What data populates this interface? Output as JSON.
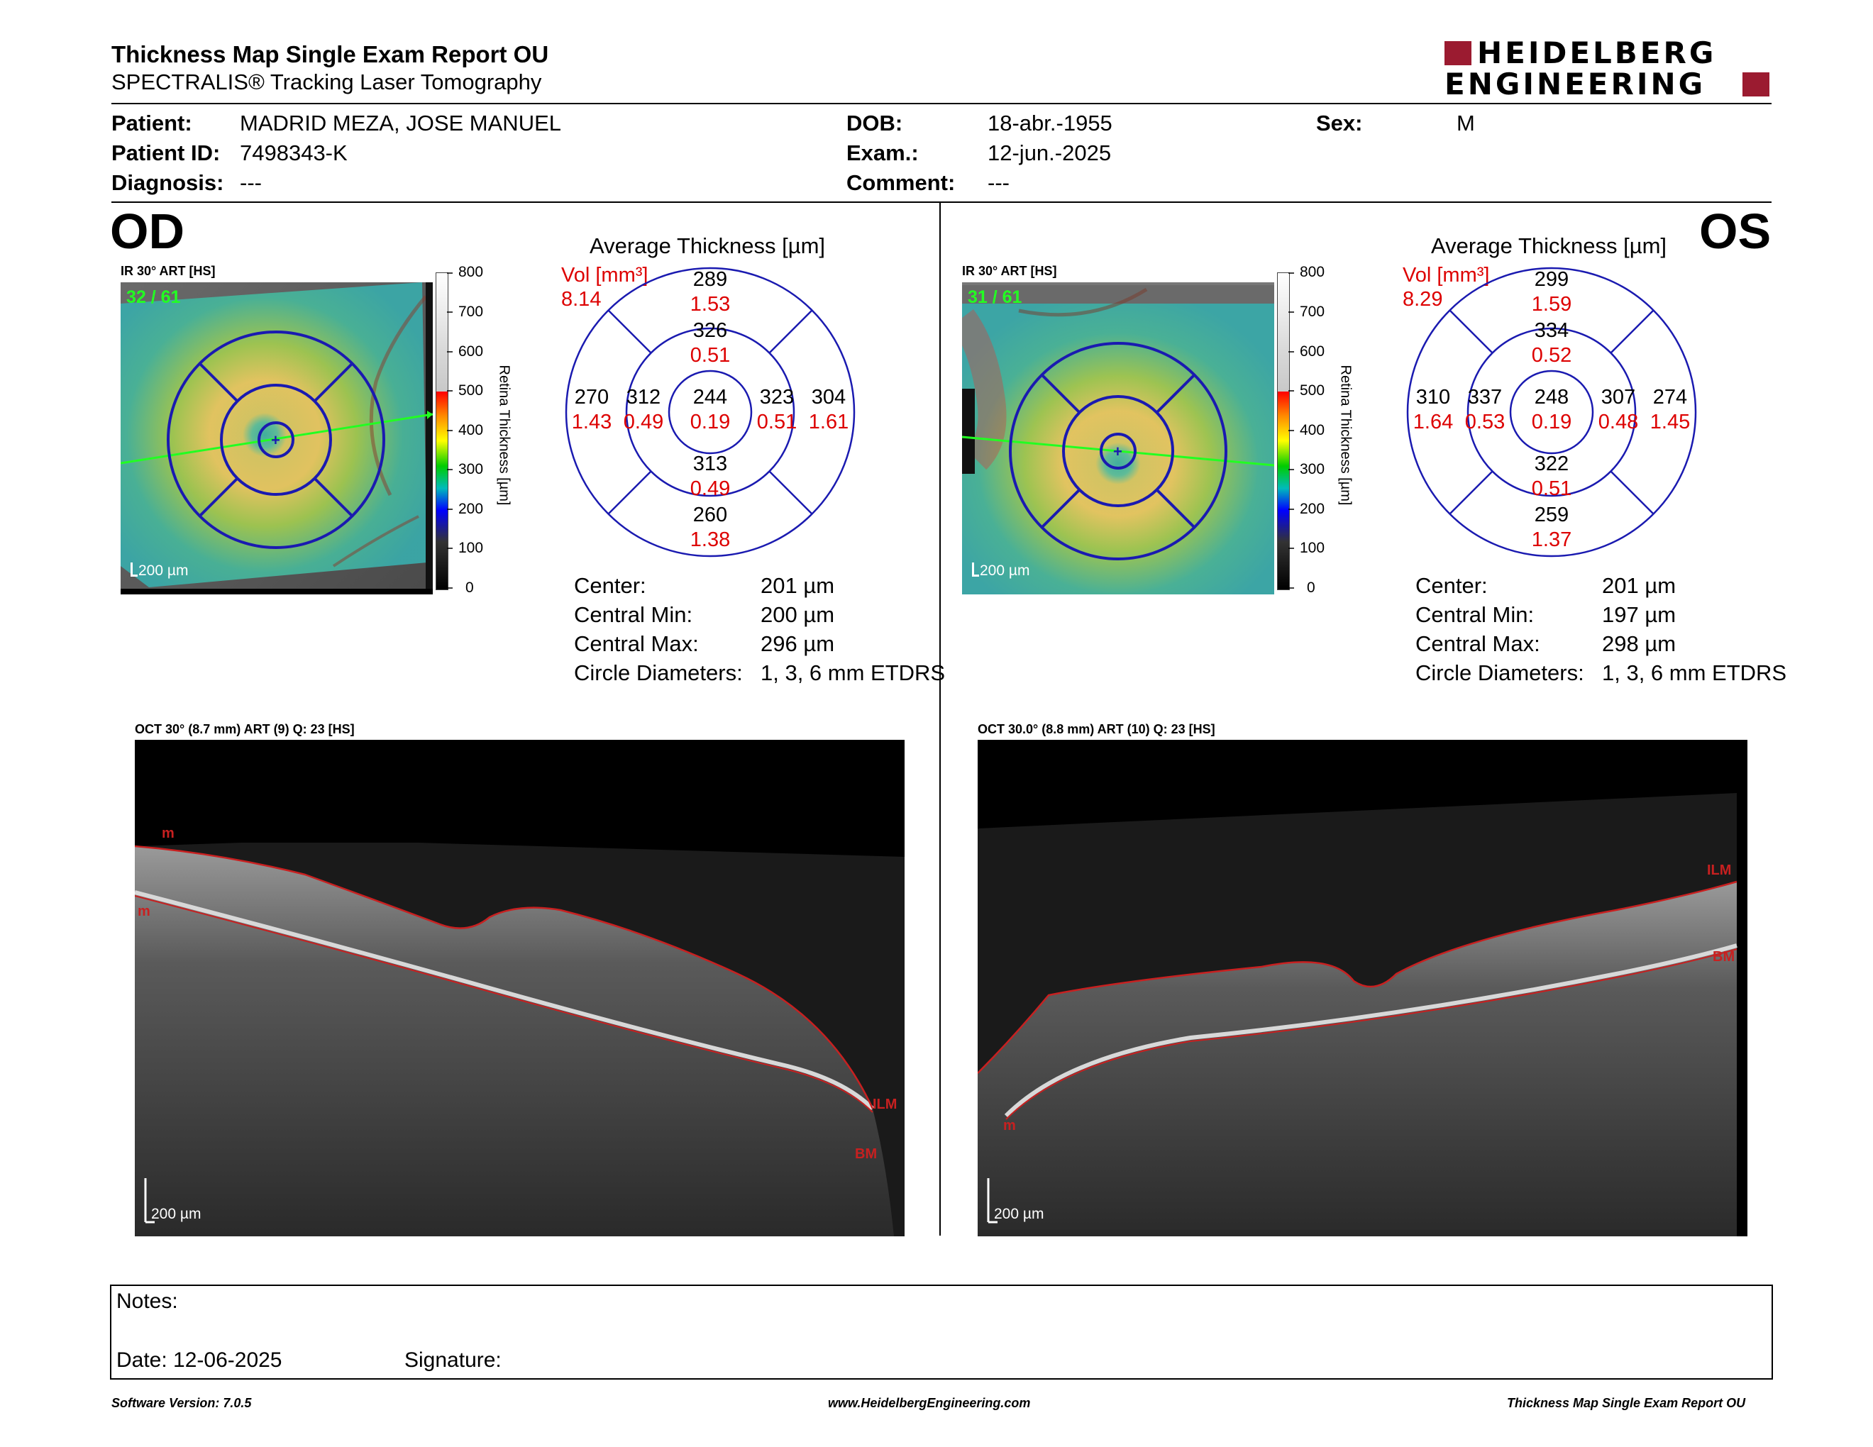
{
  "header": {
    "title": "Thickness Map Single Exam Report OU",
    "subtitle": "SPECTRALIS® Tracking Laser Tomography",
    "logo_line1": "HEIDELBERG",
    "logo_line2": "ENGINEERING"
  },
  "patient": {
    "patient_label": "Patient:",
    "patient_name": "MADRID MEZA, JOSE MANUEL",
    "id_label": "Patient ID:",
    "id_value": "7498343-K",
    "diagnosis_label": "Diagnosis:",
    "diagnosis_value": "---",
    "dob_label": "DOB:",
    "dob_value": "18-abr.-1955",
    "exam_label": "Exam.:",
    "exam_value": "12-jun.-2025",
    "comment_label": "Comment:",
    "comment_value": "---",
    "sex_label": "Sex:",
    "sex_value": "M"
  },
  "od": {
    "eye_label": "OD",
    "ir_label": "IR 30° ART [HS]",
    "frame_count": "32 / 61",
    "scale_bar": "200 µm",
    "avg_title": "Average Thickness [µm]",
    "vol_label": "Vol [mm³]",
    "vol_total": "8.14",
    "etdrs": {
      "center_t": "244",
      "center_v": "0.19",
      "inner_sup_t": "326",
      "inner_sup_v": "0.51",
      "inner_inf_t": "313",
      "inner_inf_v": "0.49",
      "inner_left_t": "312",
      "inner_left_v": "0.49",
      "inner_right_t": "323",
      "inner_right_v": "0.51",
      "outer_sup_t": "289",
      "outer_sup_v": "1.53",
      "outer_inf_t": "260",
      "outer_inf_v": "1.38",
      "outer_left_t": "270",
      "outer_left_v": "1.43",
      "outer_right_t": "304",
      "outer_right_v": "1.61"
    },
    "stats": {
      "center_label": "Center:",
      "center_value": "201 µm",
      "min_label": "Central Min:",
      "min_value": "200 µm",
      "max_label": "Central Max:",
      "max_value": "296 µm",
      "diam_label": "Circle Diameters:",
      "diam_value": "1, 3, 6 mm ETDRS"
    },
    "oct_label": "OCT 30° (8.7 mm) ART (9) Q: 23 [HS]",
    "oct_scale": "200 µm",
    "seg_labels": {
      "top_left1": "m",
      "top_left2": "m",
      "right1": "ILM",
      "right2": "BM"
    }
  },
  "os": {
    "eye_label": "OS",
    "ir_label": "IR 30° ART [HS]",
    "frame_count": "31 / 61",
    "scale_bar": "200 µm",
    "avg_title": "Average Thickness [µm]",
    "vol_label": "Vol [mm³]",
    "vol_total": "8.29",
    "etdrs": {
      "center_t": "248",
      "center_v": "0.19",
      "inner_sup_t": "334",
      "inner_sup_v": "0.52",
      "inner_inf_t": "322",
      "inner_inf_v": "0.51",
      "inner_left_t": "337",
      "inner_left_v": "0.53",
      "inner_right_t": "307",
      "inner_right_v": "0.48",
      "outer_sup_t": "299",
      "outer_sup_v": "1.59",
      "outer_inf_t": "259",
      "outer_inf_v": "1.37",
      "outer_left_t": "310",
      "outer_left_v": "1.64",
      "outer_right_t": "274",
      "outer_right_v": "1.45"
    },
    "stats": {
      "center_label": "Center:",
      "center_value": "201 µm",
      "min_label": "Central Min:",
      "min_value": "197 µm",
      "max_label": "Central Max:",
      "max_value": "298 µm",
      "diam_label": "Circle Diameters:",
      "diam_value": "1, 3, 6 mm ETDRS"
    },
    "oct_label": "OCT 30.0° (8.8 mm) ART (10) Q: 23 [HS]",
    "oct_scale": "200 µm",
    "seg_labels": {
      "right1": "ILM",
      "right2": "BM",
      "left": "m"
    }
  },
  "color_scale": {
    "ticks": [
      "800",
      "700",
      "600",
      "500",
      "400",
      "300",
      "200",
      "100",
      "0"
    ],
    "axis_label": "Retina  Thickness [µm]"
  },
  "notes": {
    "notes_label": "Notes:",
    "date_label": "Date: 12-06-2025",
    "signature_label": "Signature:"
  },
  "footer": {
    "version": "Software Version: 7.0.5",
    "website": "www.HeidelbergEngineering.com",
    "report_name": "Thickness Map Single Exam Report OU"
  },
  "colors": {
    "brand": "#9b1b30",
    "etdrs_line": "#1a1ab0",
    "volume_red": "#dd0000"
  }
}
